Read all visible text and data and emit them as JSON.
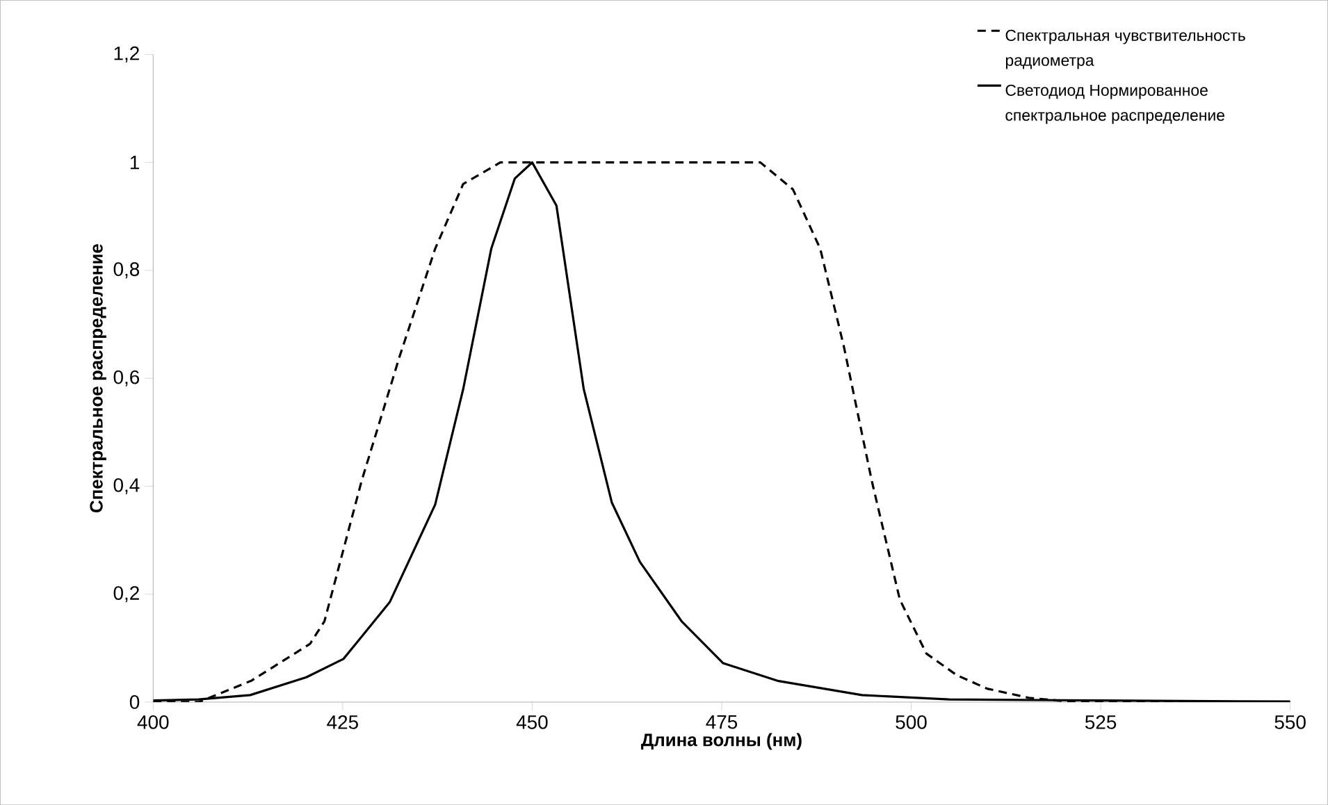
{
  "chart_data": {
    "type": "line",
    "xlabel": "Длина волны (нм)",
    "ylabel": "Спектральное распределение",
    "xlim": [
      400,
      550
    ],
    "xticks": [
      400,
      425,
      450,
      475,
      500,
      525,
      550
    ],
    "ylim": [
      0,
      1.2
    ],
    "yticks": [
      0,
      {
        "value": 0.2,
        "label": "0,2"
      },
      {
        "value": 0.4,
        "label": "0,4"
      },
      {
        "value": 0.6,
        "label": "0,6"
      },
      {
        "value": 0.8,
        "label": "0,8"
      },
      1,
      {
        "value": 1.2,
        "label": "1,2"
      }
    ],
    "grid": false,
    "legend": "top right",
    "marker": "none",
    "series": [
      {
        "name": "Спектральная чувствительность радиометра",
        "color": "#000000",
        "line_style": "dashed",
        "x": [
          400,
          406,
          413,
          420.7,
          422.6,
          427.5,
          432.5,
          437.2,
          440.9,
          445.8,
          450,
          460,
          470,
          480.1,
          484.4,
          488,
          491.1,
          494.8,
          498.5,
          502,
          506,
          510,
          515.5,
          520,
          530,
          550
        ],
        "values": [
          0,
          0,
          0.04,
          0.108,
          0.15,
          0.41,
          0.64,
          0.84,
          0.96,
          1,
          1,
          1,
          1,
          1,
          0.95,
          0.84,
          0.66,
          0.41,
          0.19,
          0.09,
          0.05,
          0.025,
          0.008,
          0.002,
          0,
          0
        ]
      },
      {
        "name": "Светодиод Нормированное спектральное распределение",
        "color": "#000000",
        "line_style": "solid",
        "x": [
          400,
          406,
          412.8,
          420.2,
          425.1,
          431.2,
          437.2,
          440.9,
          444.6,
          447.7,
          450,
          453.2,
          456.8,
          460.5,
          464.2,
          469.7,
          475.2,
          482.5,
          493.5,
          505,
          525,
          550
        ],
        "values": [
          0.003,
          0.005,
          0.013,
          0.046,
          0.08,
          0.185,
          0.366,
          0.58,
          0.84,
          0.97,
          1,
          0.92,
          0.58,
          0.37,
          0.26,
          0.15,
          0.072,
          0.039,
          0.013,
          0.005,
          0.003,
          0.001
        ]
      }
    ]
  }
}
